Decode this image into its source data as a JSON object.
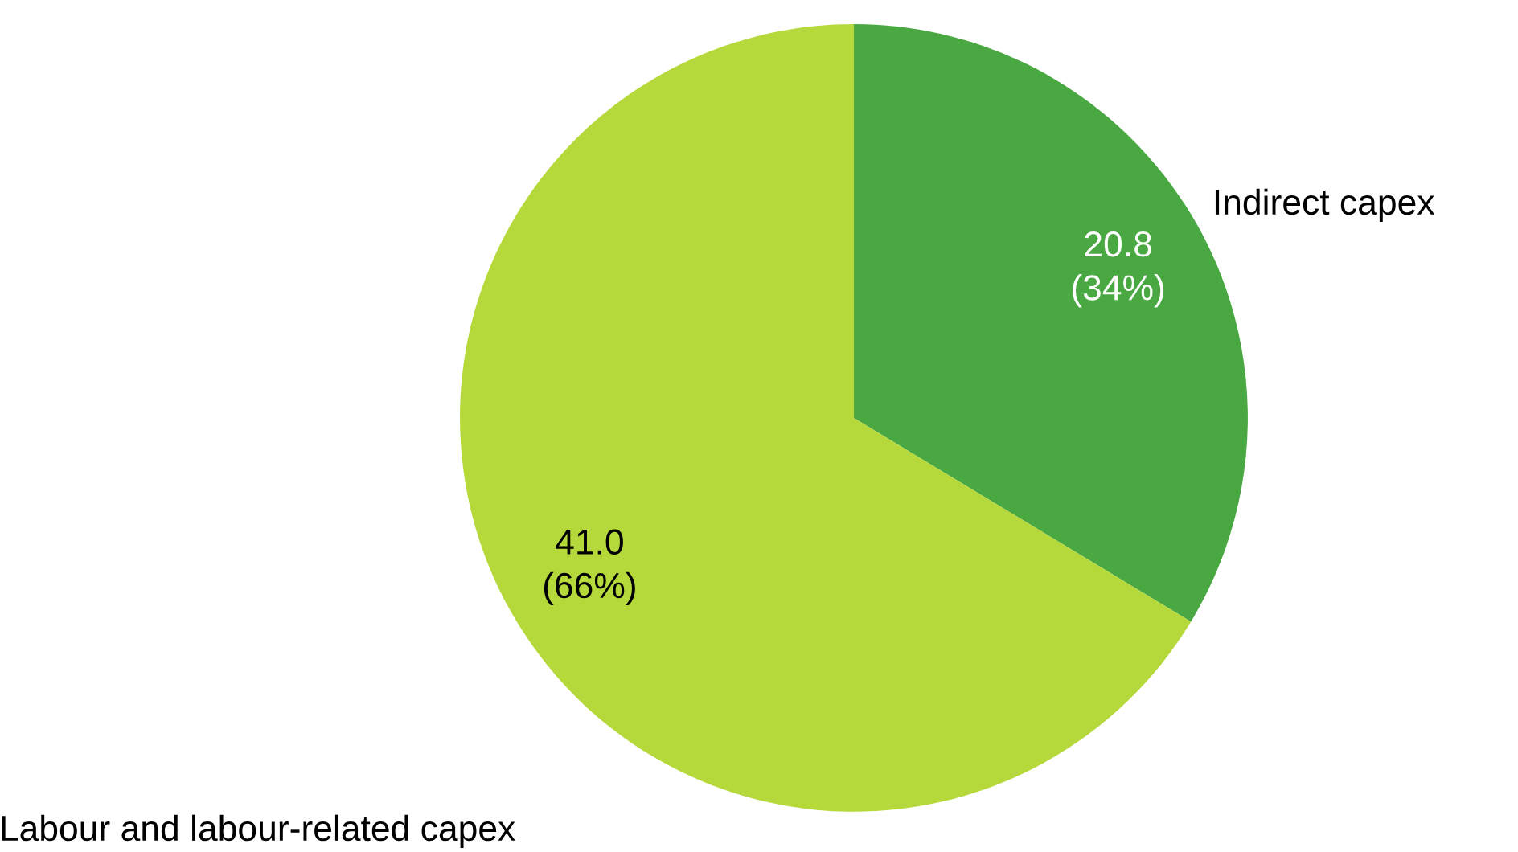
{
  "chart_data": {
    "type": "pie",
    "categories": [
      "Indirect capex",
      "Labour and labour-related capex"
    ],
    "values": [
      20.8,
      41.0
    ],
    "colors": [
      "#4aa843",
      "#b5d83b"
    ],
    "value_labels": [
      "20.8\n(34%)",
      "41.0\n(66%)"
    ]
  }
}
